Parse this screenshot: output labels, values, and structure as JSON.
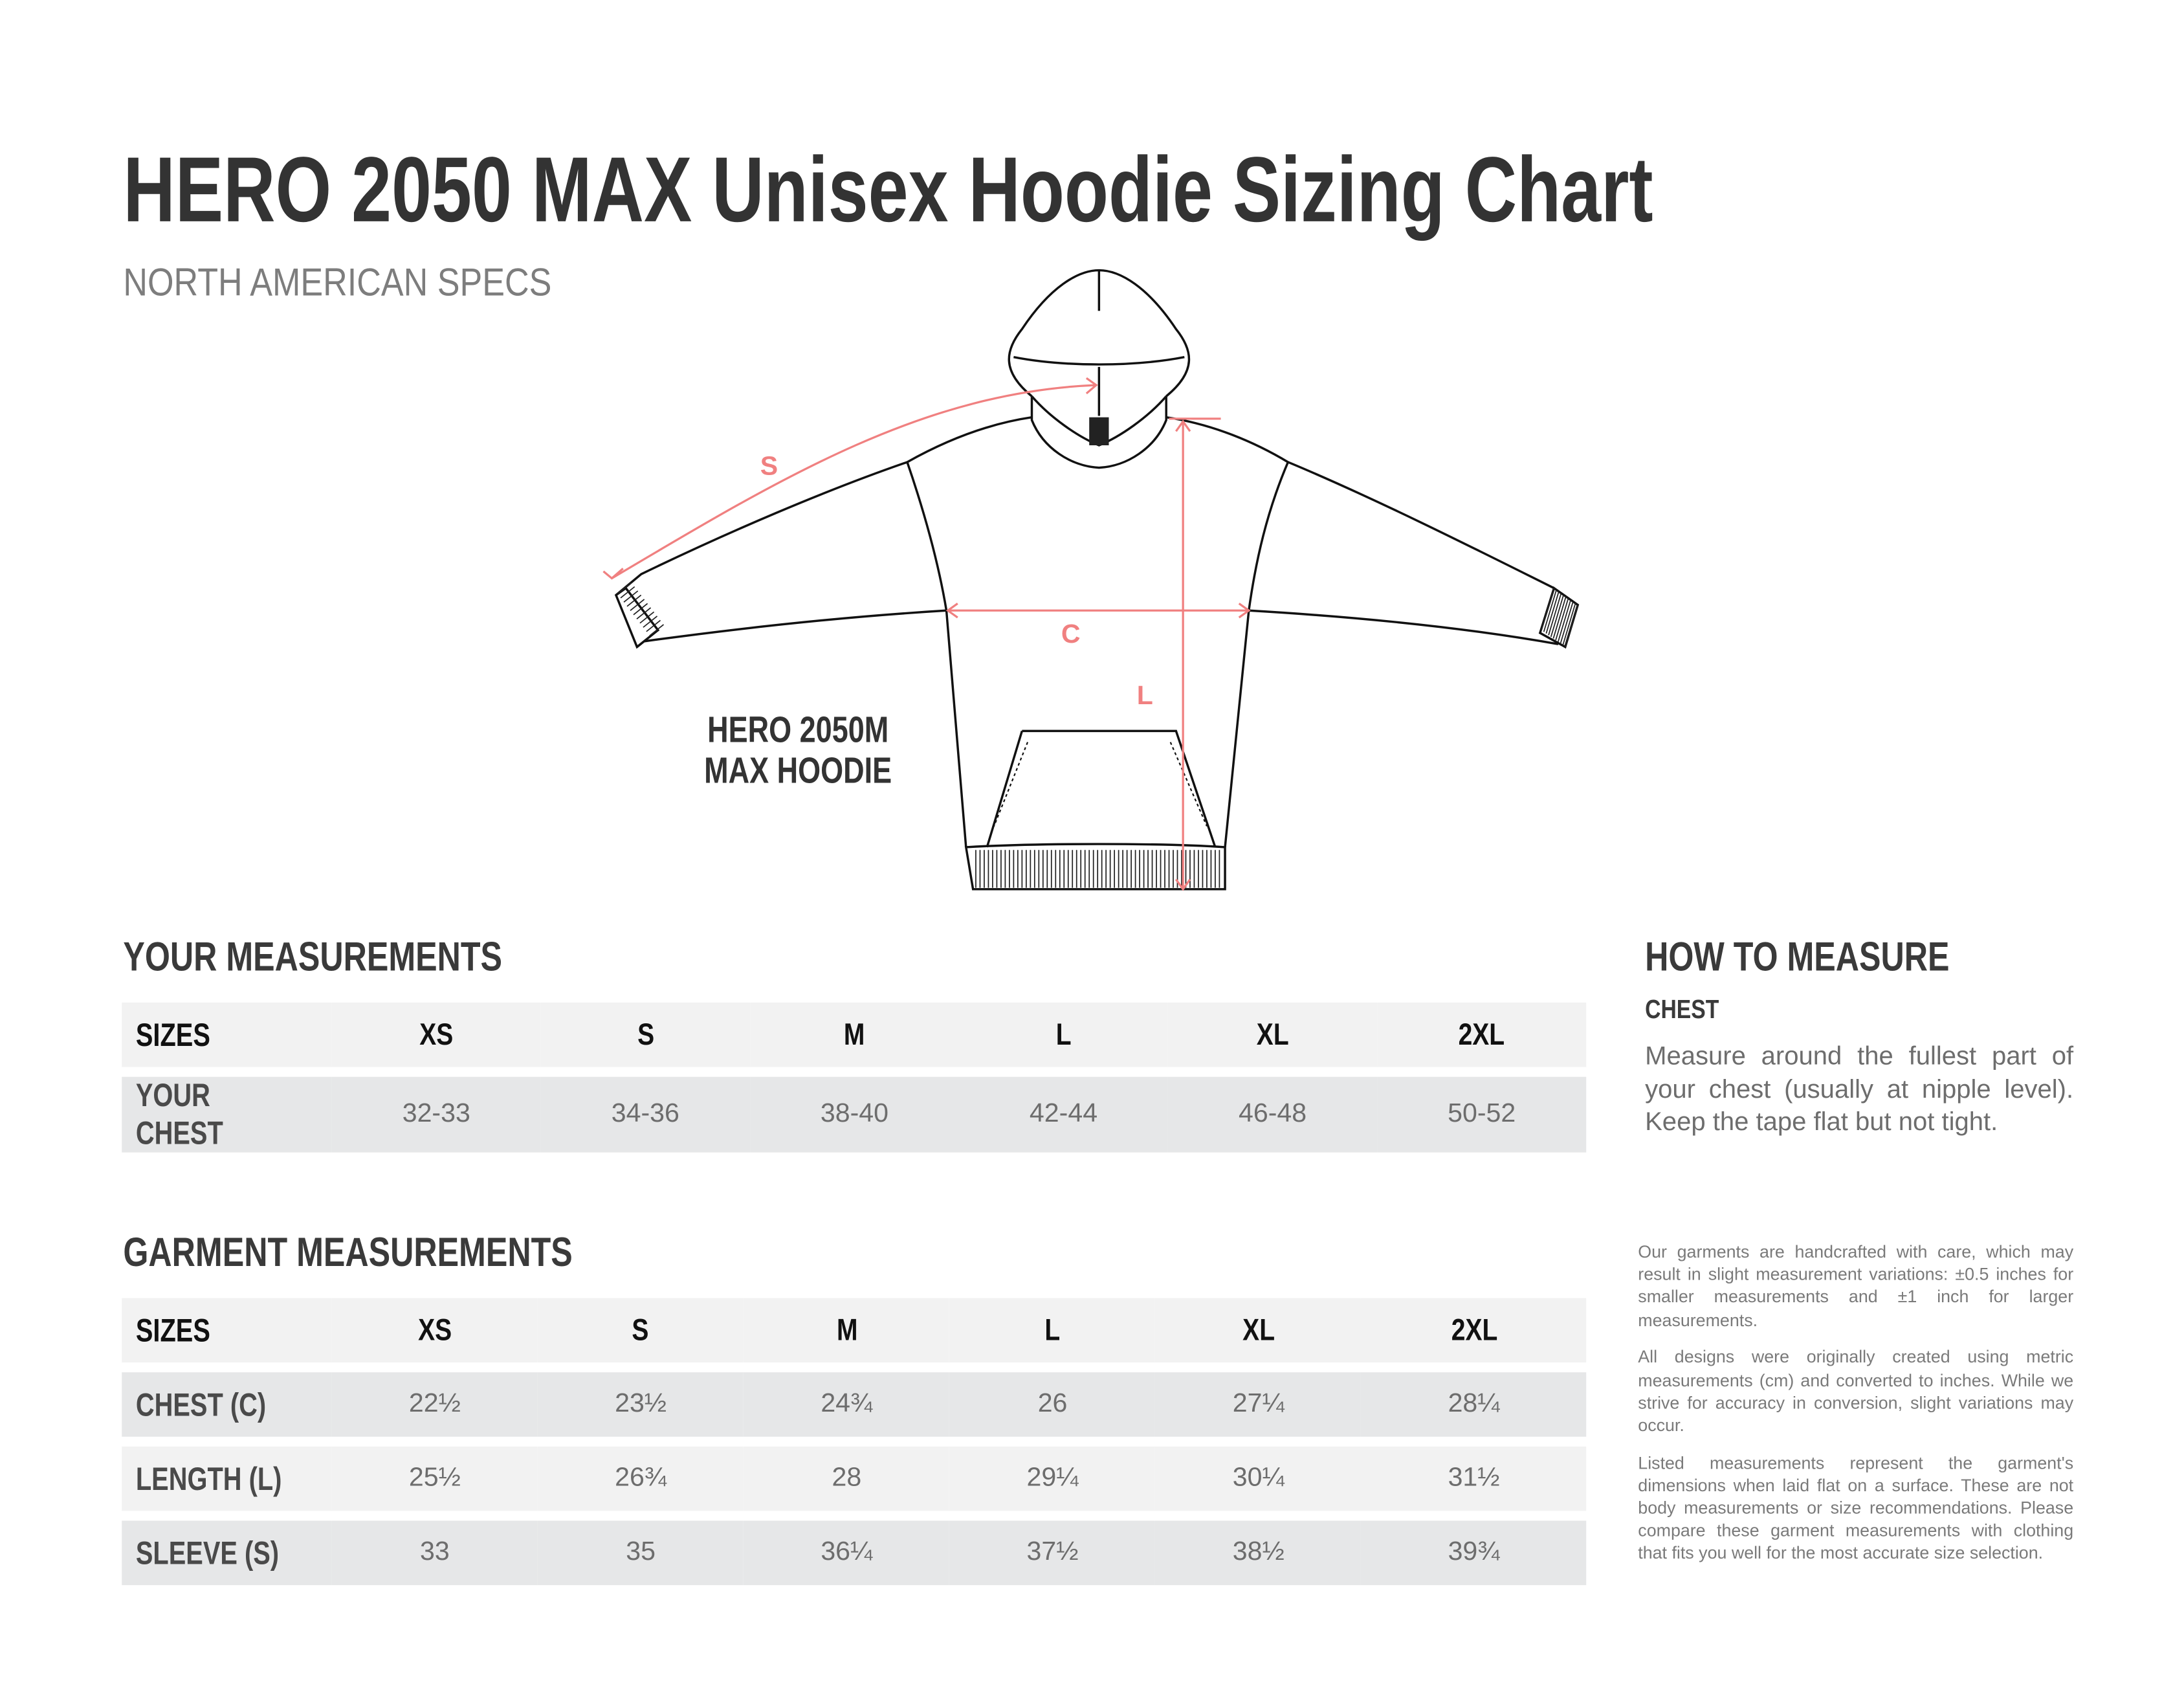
{
  "title": "HERO 2050 MAX Unisex Hoodie Sizing Chart",
  "subtitle": "NORTH AMERICAN SPECS",
  "diagram": {
    "model_line1": "HERO 2050M",
    "model_line2": "MAX HOODIE",
    "dimension_labels": {
      "sleeve": "S",
      "chest": "C",
      "length": "L"
    },
    "accent_color": "#f08080"
  },
  "your_measurements": {
    "heading": "YOUR MEASUREMENTS",
    "header": [
      "SIZES",
      "XS",
      "S",
      "M",
      "L",
      "XL",
      "2XL"
    ],
    "rows": [
      [
        "YOUR CHEST",
        "32-33",
        "34-36",
        "38-40",
        "42-44",
        "46-48",
        "50-52"
      ]
    ]
  },
  "garment_measurements": {
    "heading": "GARMENT MEASUREMENTS",
    "header": [
      "SIZES",
      "XS",
      "S",
      "M",
      "L",
      "XL",
      "2XL"
    ],
    "rows": [
      [
        "CHEST (C)",
        "22½",
        "23½",
        "24¾",
        "26",
        "27¼",
        "28¼"
      ],
      [
        "LENGTH (L)",
        "25½",
        "26¾",
        "28",
        "29¼",
        "30¼",
        "31½"
      ],
      [
        "SLEEVE (S)",
        "33",
        "35",
        "36¼",
        "37½",
        "38½",
        "39¾"
      ]
    ]
  },
  "how_to_measure": {
    "heading": "HOW TO MEASURE",
    "chest_heading": "CHEST",
    "chest_text": "Measure around the fullest part of your chest (usually at nipple level). Keep the tape flat but not tight."
  },
  "notes": [
    "Our garments are handcrafted with care, which may result in slight measurement variations: ±0.5 inches for smaller measurements and ±1 inch for larger measurements.",
    "All designs were originally created using metric measurements (cm) and converted to inches. While we strive for accuracy in conversion, slight variations may occur.",
    "Listed measurements represent the garment's dimensions when laid flat on a surface. These are not body measurements or size recommendations. Please compare these garment measurements with clothing that fits you well for the most accurate size selection."
  ]
}
